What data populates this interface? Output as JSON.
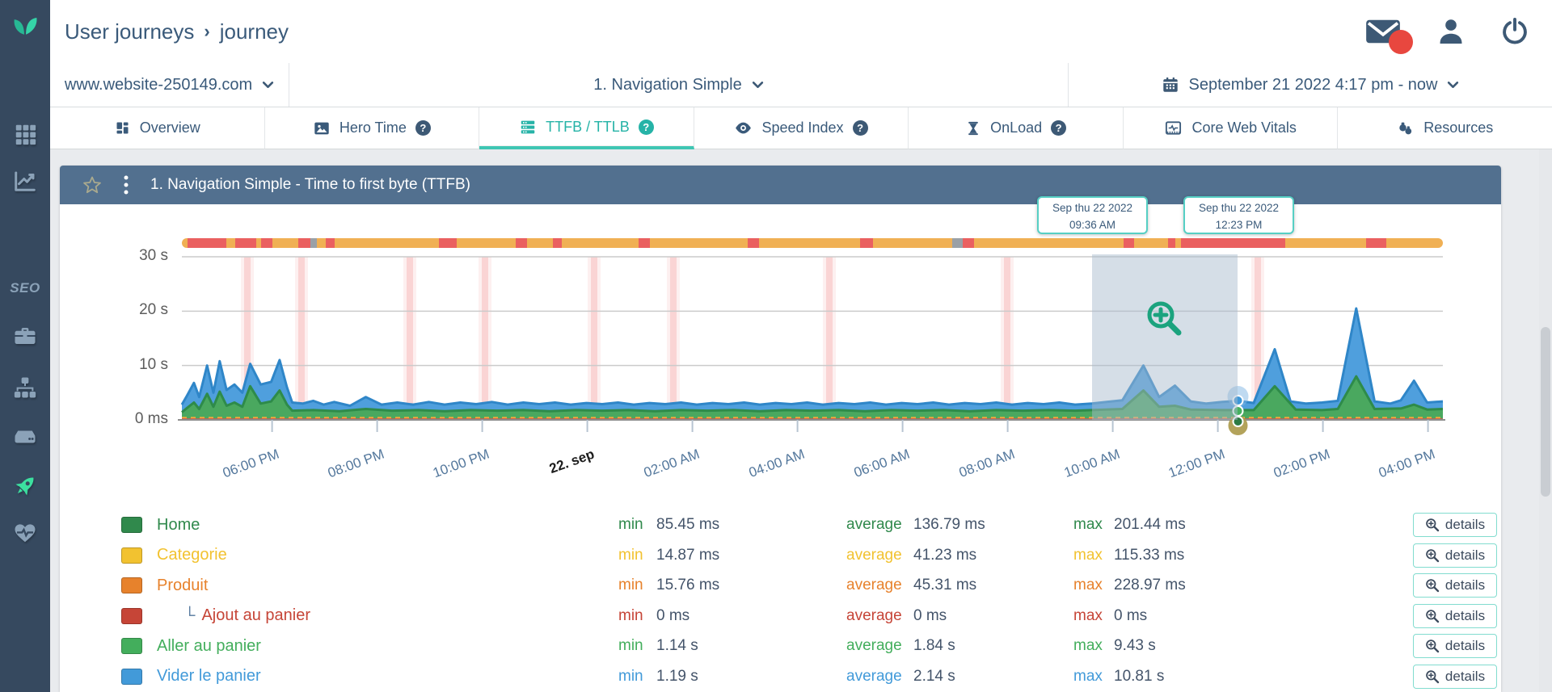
{
  "theme": {
    "accent_teal": "#2fbfae",
    "header_blue": "#52708f",
    "sidebar_navy": "#36495f",
    "slate_text": "#3a5a7a",
    "value_text": "#44546a",
    "page_bg": "#e9ebee"
  },
  "header": {
    "breadcrumb": {
      "section": "User journeys",
      "separator": "›",
      "page": "journey"
    },
    "actions": [
      {
        "name": "messages",
        "icon": "envelope-icon",
        "unread_badge": true
      },
      {
        "name": "profile",
        "icon": "person-icon"
      },
      {
        "name": "logout",
        "icon": "power-icon"
      }
    ]
  },
  "filters": {
    "site": {
      "value": "www.website-250149.com",
      "chevron_icon": "chevron-down-icon"
    },
    "journey": {
      "value": "1. Navigation Simple",
      "chevron_icon": "chevron-down-icon"
    },
    "daterange": {
      "value": "September 21 2022 4:17 pm - now",
      "icon": "calendar-icon",
      "chevron_icon": "chevron-down-icon"
    }
  },
  "tabs": [
    {
      "label": "Overview",
      "icon": "overview-icon",
      "help": false,
      "active": false
    },
    {
      "label": "Hero Time",
      "icon": "hero-time-icon",
      "help": true,
      "active": false
    },
    {
      "label": "TTFB / TTLB",
      "icon": "ttfb-icon",
      "help": true,
      "active": true
    },
    {
      "label": "Speed Index",
      "icon": "speed-index-icon",
      "help": true,
      "active": false
    },
    {
      "label": "OnLoad",
      "icon": "onload-icon",
      "help": true,
      "active": false
    },
    {
      "label": "Core Web Vitals",
      "icon": "core-web-vitals-icon",
      "help": false,
      "active": false
    },
    {
      "label": "Resources",
      "icon": "resources-icon",
      "help": false,
      "active": false
    }
  ],
  "sidebar": [
    {
      "name": "apps",
      "icon": "apps-grid-icon",
      "active": false
    },
    {
      "name": "analytics",
      "icon": "line-chart-icon",
      "active": false
    },
    {
      "name": "seo",
      "icon": "seo-label",
      "label": "SEO",
      "active": false
    },
    {
      "name": "toolbox",
      "icon": "briefcase-icon",
      "active": false
    },
    {
      "name": "sitemap",
      "icon": "sitemap-icon",
      "active": false
    },
    {
      "name": "server",
      "icon": "server-icon",
      "active": false
    },
    {
      "name": "user-journeys",
      "icon": "rocket-icon",
      "active": true
    },
    {
      "name": "health",
      "icon": "heartbeat-icon",
      "active": false
    }
  ],
  "panel": {
    "title": "1. Navigation Simple - Time to first byte (TTFB)",
    "star_icon": "star-icon",
    "menu_icon": "kebab-icon"
  },
  "chart_data": {
    "type": "area",
    "title": "1. Navigation Simple - Time to first byte (TTFB)",
    "grid": true,
    "x_axis": {
      "duration_hours": 24,
      "ticks": [
        {
          "hours": 1.717,
          "label": "06:00 PM"
        },
        {
          "hours": 3.717,
          "label": "08:00 PM"
        },
        {
          "hours": 5.717,
          "label": "10:00 PM"
        },
        {
          "hours": 7.717,
          "label": "22. sep",
          "emphasis": true
        },
        {
          "hours": 9.717,
          "label": "02:00 AM"
        },
        {
          "hours": 11.717,
          "label": "04:00 AM"
        },
        {
          "hours": 13.717,
          "label": "06:00 AM"
        },
        {
          "hours": 15.717,
          "label": "08:00 AM"
        },
        {
          "hours": 17.717,
          "label": "10:00 AM"
        },
        {
          "hours": 19.717,
          "label": "12:00 PM"
        },
        {
          "hours": 21.717,
          "label": "02:00 PM"
        },
        {
          "hours": 23.717,
          "label": "04:00 PM"
        }
      ]
    },
    "y_axis": {
      "max_s": 30,
      "labels": [
        {
          "value_s": 30,
          "label": "30 s"
        },
        {
          "value_s": 20,
          "label": "20 s"
        },
        {
          "value_s": 10,
          "label": "10 s"
        },
        {
          "value_s": 0,
          "label": "0 ms"
        }
      ]
    },
    "series": [
      {
        "name": "Vider le panier (stacked total)",
        "kind": "area",
        "fill": "#4f9fdd",
        "stroke": "#2f86c8",
        "points": [
          [
            0,
            2.8
          ],
          [
            0.1,
            4.5
          ],
          [
            0.23,
            6.8
          ],
          [
            0.33,
            4.2
          ],
          [
            0.48,
            10
          ],
          [
            0.6,
            5
          ],
          [
            0.72,
            10.8
          ],
          [
            0.85,
            5.5
          ],
          [
            1.0,
            6.5
          ],
          [
            1.15,
            5
          ],
          [
            1.3,
            10.3
          ],
          [
            1.5,
            6.5
          ],
          [
            1.7,
            7
          ],
          [
            1.86,
            11
          ],
          [
            2.0,
            6
          ],
          [
            2.1,
            3.2
          ],
          [
            2.3,
            3.0
          ],
          [
            2.5,
            3.5
          ],
          [
            2.7,
            2.8
          ],
          [
            2.9,
            3.3
          ],
          [
            3.2,
            2.6
          ],
          [
            3.5,
            4.2
          ],
          [
            3.8,
            2.8
          ],
          [
            4.1,
            3.2
          ],
          [
            4.4,
            2.8
          ],
          [
            4.7,
            3.3
          ],
          [
            5.0,
            2.8
          ],
          [
            5.3,
            3.2
          ],
          [
            5.6,
            2.9
          ],
          [
            5.9,
            3.3
          ],
          [
            6.2,
            2.8
          ],
          [
            6.5,
            3.2
          ],
          [
            6.8,
            2.9
          ],
          [
            7.1,
            3.2
          ],
          [
            7.4,
            2.8
          ],
          [
            7.7,
            3.1
          ],
          [
            8.0,
            2.9
          ],
          [
            8.3,
            3.2
          ],
          [
            8.6,
            2.8
          ],
          [
            8.9,
            3.1
          ],
          [
            9.2,
            2.9
          ],
          [
            9.5,
            3.2
          ],
          [
            9.8,
            2.8
          ],
          [
            10.1,
            3.1
          ],
          [
            10.4,
            2.9
          ],
          [
            10.7,
            3.2
          ],
          [
            11.0,
            2.8
          ],
          [
            11.3,
            3.1
          ],
          [
            11.6,
            2.9
          ],
          [
            11.9,
            3.2
          ],
          [
            12.2,
            2.8
          ],
          [
            12.5,
            3.1
          ],
          [
            12.8,
            2.9
          ],
          [
            13.1,
            3.2
          ],
          [
            13.4,
            2.8
          ],
          [
            13.7,
            3.1
          ],
          [
            14.0,
            2.9
          ],
          [
            14.3,
            3.2
          ],
          [
            14.6,
            2.8
          ],
          [
            14.9,
            3.1
          ],
          [
            15.2,
            2.9
          ],
          [
            15.5,
            3.2
          ],
          [
            15.8,
            2.8
          ],
          [
            16.1,
            3.1
          ],
          [
            16.4,
            2.9
          ],
          [
            16.7,
            3.2
          ],
          [
            17.0,
            2.8
          ],
          [
            17.32,
            3.0
          ],
          [
            17.6,
            3.3
          ],
          [
            17.9,
            3.6
          ],
          [
            18.3,
            10
          ],
          [
            18.6,
            4.2
          ],
          [
            18.9,
            6.3
          ],
          [
            19.2,
            3.4
          ],
          [
            19.5,
            3.0
          ],
          [
            19.8,
            3.3
          ],
          [
            20.1,
            3.5
          ],
          [
            20.4,
            3.1
          ],
          [
            20.8,
            13
          ],
          [
            21.1,
            3.4
          ],
          [
            21.4,
            3.0
          ],
          [
            21.7,
            3.2
          ],
          [
            22.0,
            3.5
          ],
          [
            22.35,
            20.5
          ],
          [
            22.7,
            3.4
          ],
          [
            23.0,
            3.0
          ],
          [
            23.2,
            3.6
          ],
          [
            23.45,
            7.2
          ],
          [
            23.7,
            3.2
          ],
          [
            24,
            3.4
          ]
        ]
      },
      {
        "name": "Aller au panier (stacked)",
        "kind": "area",
        "fill": "#4aa85f",
        "stroke": "#2e8b4a",
        "points": [
          [
            0,
            1.4
          ],
          [
            0.1,
            2.2
          ],
          [
            0.23,
            3.2
          ],
          [
            0.33,
            2.0
          ],
          [
            0.48,
            4.8
          ],
          [
            0.6,
            2.4
          ],
          [
            0.72,
            5.2
          ],
          [
            0.85,
            2.6
          ],
          [
            1.0,
            3.2
          ],
          [
            1.15,
            2.4
          ],
          [
            1.3,
            6.2
          ],
          [
            1.5,
            3.0
          ],
          [
            1.7,
            3.4
          ],
          [
            1.86,
            5.4
          ],
          [
            2.0,
            2.8
          ],
          [
            2.1,
            1.7
          ],
          [
            2.5,
            1.8
          ],
          [
            3.0,
            1.6
          ],
          [
            3.5,
            2.0
          ],
          [
            4.0,
            1.7
          ],
          [
            4.5,
            1.8
          ],
          [
            5.0,
            1.6
          ],
          [
            5.5,
            1.8
          ],
          [
            6.0,
            1.7
          ],
          [
            6.5,
            1.8
          ],
          [
            7.0,
            1.6
          ],
          [
            7.5,
            1.8
          ],
          [
            8.0,
            1.7
          ],
          [
            8.5,
            1.8
          ],
          [
            9.0,
            1.6
          ],
          [
            9.5,
            1.8
          ],
          [
            10.0,
            1.7
          ],
          [
            10.5,
            1.8
          ],
          [
            11.0,
            1.6
          ],
          [
            11.5,
            1.8
          ],
          [
            12.0,
            1.7
          ],
          [
            12.5,
            1.8
          ],
          [
            13.0,
            1.6
          ],
          [
            13.5,
            1.8
          ],
          [
            14.0,
            1.7
          ],
          [
            14.5,
            1.8
          ],
          [
            15.0,
            1.6
          ],
          [
            15.5,
            1.8
          ],
          [
            16.0,
            1.7
          ],
          [
            16.5,
            1.8
          ],
          [
            17.0,
            1.7
          ],
          [
            17.32,
            1.8
          ],
          [
            17.9,
            2.0
          ],
          [
            18.3,
            5.4
          ],
          [
            18.6,
            2.4
          ],
          [
            18.9,
            2.6
          ],
          [
            19.2,
            1.9
          ],
          [
            19.8,
            1.8
          ],
          [
            20.4,
            1.8
          ],
          [
            20.8,
            6.2
          ],
          [
            21.2,
            1.9
          ],
          [
            21.7,
            1.8
          ],
          [
            22.0,
            2.0
          ],
          [
            22.35,
            8.0
          ],
          [
            22.7,
            2.0
          ],
          [
            23.2,
            2.1
          ],
          [
            23.45,
            2.8
          ],
          [
            23.7,
            1.9
          ],
          [
            24,
            2.0
          ]
        ]
      },
      {
        "name": "Produit baseline",
        "kind": "line",
        "stroke": "#f0a83c",
        "dashed": true,
        "value_s": 0.4
      },
      {
        "name": "Ajout au panier baseline",
        "kind": "line",
        "stroke": "#d9534f",
        "dashed": false,
        "value_s": 0.12
      }
    ],
    "status_strip": {
      "segments": [
        [
          0,
          0.45,
          "#f0b054"
        ],
        [
          0.45,
          3.5,
          "#ea6060"
        ],
        [
          3.5,
          4.2,
          "#f0b054"
        ],
        [
          4.2,
          5.9,
          "#ea6060"
        ],
        [
          5.9,
          6.3,
          "#f0b054"
        ],
        [
          6.3,
          7.2,
          "#ea6060"
        ],
        [
          7.2,
          9.2,
          "#f0b054"
        ],
        [
          9.2,
          10.2,
          "#ea6060"
        ],
        [
          10.2,
          10.7,
          "#9aa0a6"
        ],
        [
          10.7,
          11.4,
          "#f0b054"
        ],
        [
          11.4,
          12.1,
          "#ea6060"
        ],
        [
          12.1,
          20.4,
          "#f0b054"
        ],
        [
          20.4,
          21.8,
          "#ea6060"
        ],
        [
          21.8,
          26.5,
          "#f0b054"
        ],
        [
          26.5,
          27.4,
          "#ea6060"
        ],
        [
          27.4,
          29.4,
          "#f0b054"
        ],
        [
          29.4,
          30.1,
          "#ea6060"
        ],
        [
          30.1,
          36.2,
          "#f0b054"
        ],
        [
          36.2,
          37.1,
          "#ea6060"
        ],
        [
          37.1,
          44.9,
          "#f0b054"
        ],
        [
          44.9,
          45.8,
          "#ea6060"
        ],
        [
          45.8,
          53.8,
          "#f0b054"
        ],
        [
          53.8,
          54.8,
          "#ea6060"
        ],
        [
          54.8,
          61.1,
          "#f0b054"
        ],
        [
          61.1,
          61.9,
          "#9aa0a6"
        ],
        [
          61.9,
          62.8,
          "#ea6060"
        ],
        [
          62.8,
          74.7,
          "#f0b054"
        ],
        [
          74.7,
          75.5,
          "#ea6060"
        ],
        [
          75.5,
          78.2,
          "#f0b054"
        ],
        [
          78.2,
          78.8,
          "#ea6060"
        ],
        [
          78.8,
          79.2,
          "#f0b054"
        ],
        [
          79.2,
          87.5,
          "#ea6060"
        ],
        [
          87.5,
          93.9,
          "#f0b054"
        ],
        [
          93.9,
          95.5,
          "#ea6060"
        ],
        [
          95.5,
          100,
          "#f0b054"
        ]
      ]
    },
    "incident_bands_hours": [
      1.25,
      2.28,
      4.34,
      5.77,
      7.85,
      9.35,
      12.32,
      15.71,
      20.48
    ],
    "selection": {
      "from_hours": 17.32,
      "to_hours": 20.1,
      "zoom_icon": "magnifier-plus-icon"
    },
    "tooltips": [
      {
        "line1": "Sep thu 22 2022",
        "line2": "09:36 AM",
        "at_hours": 17.32
      },
      {
        "line1": "Sep thu 22 2022",
        "line2": "12:23 PM",
        "at_hours": 20.1
      }
    ],
    "marker": {
      "at_hours": 20.1,
      "dot_colors": [
        "#3d97d8",
        "#44b05f",
        "#2c7a44"
      ],
      "halo_color": "#7fb6e4",
      "base_color": "#ac9b4d"
    }
  },
  "legend": {
    "min_label": "min",
    "average_label": "average",
    "max_label": "max",
    "details_label": "details",
    "details_icon": "details-magnifier-icon",
    "child_prefix": "└",
    "rows": [
      {
        "label": "Home",
        "color": "#30894c",
        "child": false,
        "min": "85.45 ms",
        "average": "136.79 ms",
        "max": "201.44 ms"
      },
      {
        "label": "Categorie",
        "color": "#f2c230",
        "child": false,
        "min": "14.87 ms",
        "average": "41.23 ms",
        "max": "115.33 ms"
      },
      {
        "label": "Produit",
        "color": "#e7822c",
        "child": false,
        "min": "15.76 ms",
        "average": "45.31 ms",
        "max": "228.97 ms"
      },
      {
        "label": "Ajout au panier",
        "color": "#c64537",
        "child": true,
        "min": "0 ms",
        "average": "0 ms",
        "max": "0 ms"
      },
      {
        "label": "Aller au panier",
        "color": "#43ae5c",
        "child": false,
        "min": "1.14 s",
        "average": "1.84 s",
        "max": "9.43 s"
      },
      {
        "label": "Vider le panier",
        "color": "#429ad9",
        "child": false,
        "min": "1.19 s",
        "average": "2.14 s",
        "max": "10.81 s"
      }
    ]
  }
}
